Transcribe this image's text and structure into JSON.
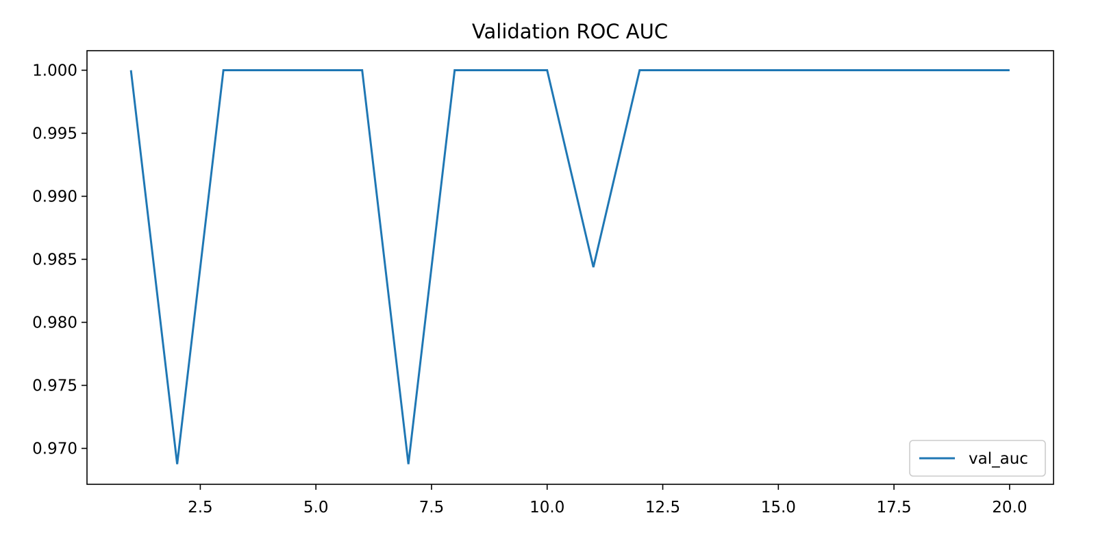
{
  "chart_data": {
    "type": "line",
    "title": "Validation ROC AUC",
    "xlabel": "",
    "ylabel": "",
    "xlim": [
      0.05,
      20.95
    ],
    "ylim": [
      0.96715,
      1.00155
    ],
    "x_ticks": [
      {
        "value": 2.5,
        "label": "2.5"
      },
      {
        "value": 5.0,
        "label": "5.0"
      },
      {
        "value": 7.5,
        "label": "7.5"
      },
      {
        "value": 10.0,
        "label": "10.0"
      },
      {
        "value": 12.5,
        "label": "12.5"
      },
      {
        "value": 15.0,
        "label": "15.0"
      },
      {
        "value": 17.5,
        "label": "17.5"
      },
      {
        "value": 20.0,
        "label": "20.0"
      }
    ],
    "y_ticks": [
      {
        "value": 0.97,
        "label": "0.970"
      },
      {
        "value": 0.975,
        "label": "0.975"
      },
      {
        "value": 0.98,
        "label": "0.980"
      },
      {
        "value": 0.985,
        "label": "0.985"
      },
      {
        "value": 0.99,
        "label": "0.990"
      },
      {
        "value": 0.995,
        "label": "0.995"
      },
      {
        "value": 1.0,
        "label": "1.000"
      }
    ],
    "grid": false,
    "legend_position": "lower-right",
    "series": [
      {
        "name": "val_auc",
        "color": "#1f77b4",
        "x": [
          1,
          2,
          3,
          4,
          5,
          6,
          7,
          8,
          9,
          10,
          11,
          12,
          13,
          14,
          15,
          16,
          17,
          18,
          19,
          20
        ],
        "y": [
          1.0,
          0.96875,
          1.0,
          1.0,
          1.0,
          1.0,
          0.96875,
          1.0,
          1.0,
          1.0,
          0.984375,
          1.0,
          1.0,
          1.0,
          1.0,
          1.0,
          1.0,
          1.0,
          1.0,
          1.0
        ]
      }
    ]
  }
}
